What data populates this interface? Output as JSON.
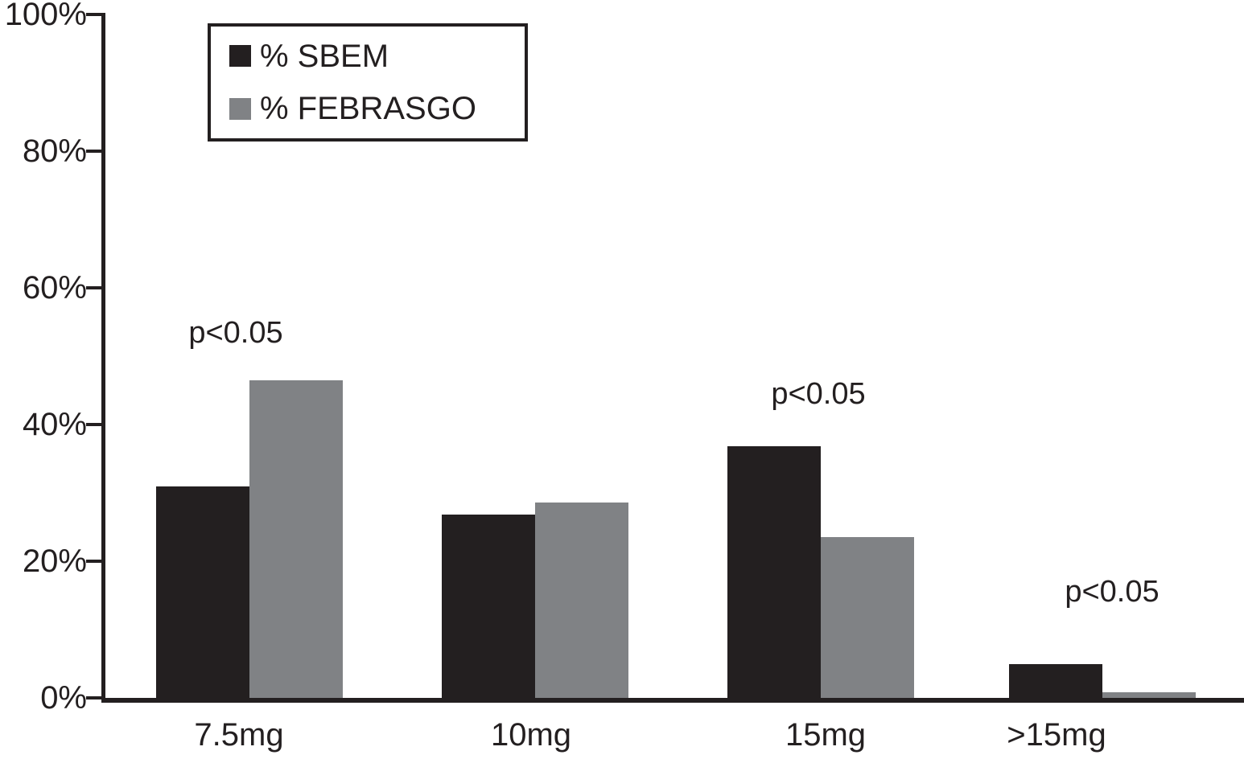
{
  "chart_data": {
    "type": "bar",
    "categories": [
      "7.5mg",
      "10mg",
      "15mg",
      ">15mg"
    ],
    "series": [
      {
        "name": "% SBEM",
        "color": "#231f20",
        "values": [
          31,
          26.8,
          36.8,
          4.9
        ]
      },
      {
        "name": "% FEBRASGO",
        "color": "#808285",
        "values": [
          46.5,
          28.6,
          23.5,
          0.8
        ]
      }
    ],
    "y_tick_labels": [
      "0%",
      "20%",
      "40%",
      "60%",
      "80%",
      "100%"
    ],
    "ylim": [
      0,
      100
    ],
    "grid": false,
    "legend_position": "top-left",
    "annotations": [
      {
        "category_index": 0,
        "text": "p<0.05"
      },
      {
        "category_index": 2,
        "text": "p<0.05"
      },
      {
        "category_index": 3,
        "text": "p<0.05"
      }
    ],
    "axis_color": "#231f20",
    "background_color": "#ffffff"
  }
}
